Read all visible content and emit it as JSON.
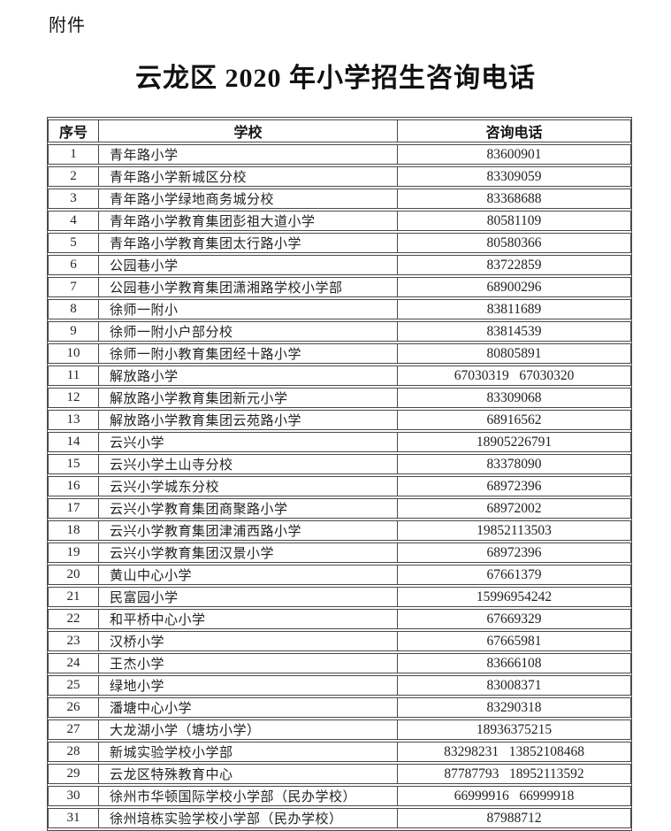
{
  "page": {
    "attachment_label": "附件",
    "title": "云龙区 2020 年小学招生咨询电话"
  },
  "colors": {
    "text": "#1c1c1c",
    "border": "#4a4a4a",
    "background": "#ffffff"
  },
  "table": {
    "headers": [
      "序号",
      "学校",
      "咨询电话"
    ],
    "rows": [
      {
        "no": "1",
        "school": "青年路小学",
        "phone": "83600901"
      },
      {
        "no": "2",
        "school": "青年路小学新城区分校",
        "phone": "83309059"
      },
      {
        "no": "3",
        "school": "青年路小学绿地商务城分校",
        "phone": "83368688"
      },
      {
        "no": "4",
        "school": "青年路小学教育集团彭祖大道小学",
        "phone": "80581109"
      },
      {
        "no": "5",
        "school": "青年路小学教育集团太行路小学",
        "phone": "80580366"
      },
      {
        "no": "6",
        "school": "公园巷小学",
        "phone": "83722859"
      },
      {
        "no": "7",
        "school": "公园巷小学教育集团潇湘路学校小学部",
        "phone": "68900296"
      },
      {
        "no": "8",
        "school": "徐师一附小",
        "phone": "83811689"
      },
      {
        "no": "9",
        "school": "徐师一附小户部分校",
        "phone": "83814539"
      },
      {
        "no": "10",
        "school": "徐师一附小教育集团经十路小学",
        "phone": "80805891"
      },
      {
        "no": "11",
        "school": "解放路小学",
        "phone": "67030319   67030320"
      },
      {
        "no": "12",
        "school": "解放路小学教育集团新元小学",
        "phone": "83309068"
      },
      {
        "no": "13",
        "school": "解放路小学教育集团云苑路小学",
        "phone": "68916562"
      },
      {
        "no": "14",
        "school": "云兴小学",
        "phone": "18905226791"
      },
      {
        "no": "15",
        "school": "云兴小学土山寺分校",
        "phone": "83378090"
      },
      {
        "no": "16",
        "school": "云兴小学城东分校",
        "phone": "68972396"
      },
      {
        "no": "17",
        "school": "云兴小学教育集团商聚路小学",
        "phone": "68972002"
      },
      {
        "no": "18",
        "school": "云兴小学教育集团津浦西路小学",
        "phone": "19852113503"
      },
      {
        "no": "19",
        "school": "云兴小学教育集团汉景小学",
        "phone": "68972396"
      },
      {
        "no": "20",
        "school": "黄山中心小学",
        "phone": "67661379"
      },
      {
        "no": "21",
        "school": "民富园小学",
        "phone": "15996954242"
      },
      {
        "no": "22",
        "school": "和平桥中心小学",
        "phone": "67669329"
      },
      {
        "no": "23",
        "school": "汉桥小学",
        "phone": "67665981"
      },
      {
        "no": "24",
        "school": "王杰小学",
        "phone": "83666108"
      },
      {
        "no": "25",
        "school": "绿地小学",
        "phone": "83008371"
      },
      {
        "no": "26",
        "school": "潘塘中心小学",
        "phone": "83290318"
      },
      {
        "no": "27",
        "school": "大龙湖小学（塘坊小学）",
        "phone": "18936375215"
      },
      {
        "no": "28",
        "school": "新城实验学校小学部",
        "phone": "83298231   13852108468"
      },
      {
        "no": "29",
        "school": "云龙区特殊教育中心",
        "phone": "87787793   18952113592"
      },
      {
        "no": "30",
        "school": "徐州市华顿国际学校小学部（民办学校）",
        "phone": "66999916   66999918"
      },
      {
        "no": "31",
        "school": "徐州培栋实验学校小学部（民办学校）",
        "phone": "87988712"
      }
    ]
  }
}
